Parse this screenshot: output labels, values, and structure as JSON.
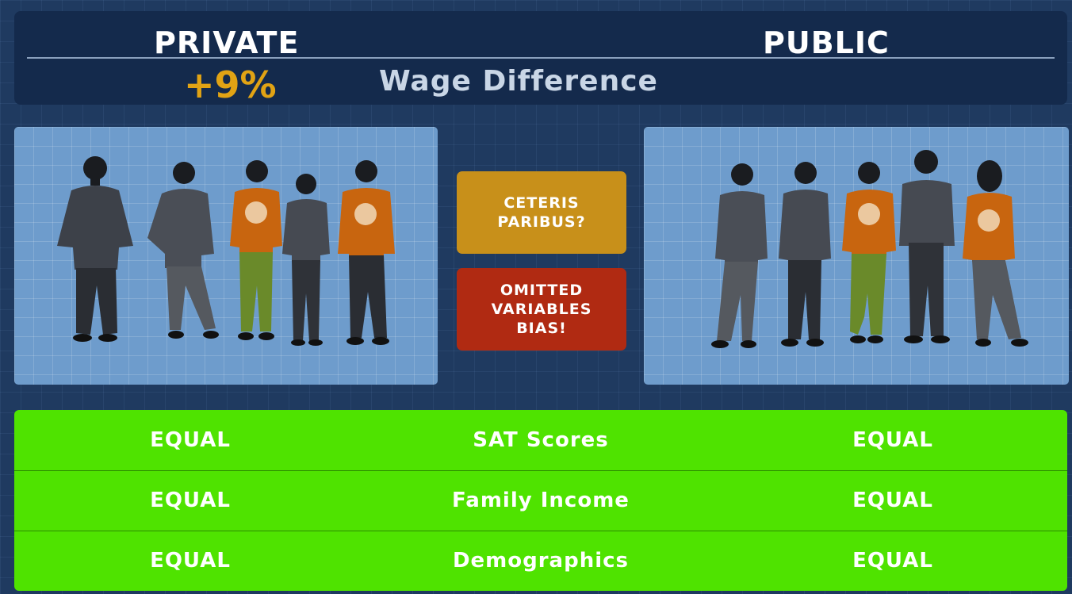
{
  "header": {
    "private_label": "PRIVATE",
    "public_label": "PUBLIC",
    "difference_value": "+9%",
    "difference_label": "Wage Difference"
  },
  "tags": {
    "ceteris": "CETERIS\nPARIBUS?",
    "omitted": "OMITTED\nVARIABLES\nBIAS!"
  },
  "comparison_rows": [
    {
      "left": "EQUAL",
      "label": "SAT Scores",
      "right": "EQUAL"
    },
    {
      "left": "EQUAL",
      "label": "Family Income",
      "right": "EQUAL"
    },
    {
      "left": "EQUAL",
      "label": "Demographics",
      "right": "EQUAL"
    }
  ],
  "colors": {
    "background": "#1f3a60",
    "header": "#142a4c",
    "accent_gold": "#e1a314",
    "ceteris_tag": "#c8901a",
    "omitted_tag": "#b02a12",
    "table_green": "#4fe300",
    "panel_blue": "#6e9ccc"
  },
  "icons": {
    "figure": "person-silhouette-icon",
    "einstein_shirt": "einstein-portrait-icon"
  }
}
